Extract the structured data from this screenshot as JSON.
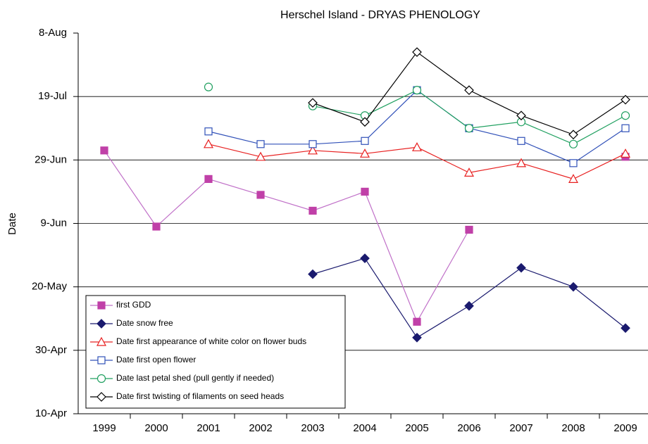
{
  "chart_data": {
    "type": "line",
    "title": "Herschel Island - DRYAS PHENOLOGY",
    "y_label": "Date",
    "categories": [
      "1999",
      "2000",
      "2001",
      "2002",
      "2003",
      "2004",
      "2005",
      "2006",
      "2007",
      "2008",
      "2009"
    ],
    "ylim": [
      100,
      220
    ],
    "yticks": [
      {
        "value": 100,
        "label": "10-Apr"
      },
      {
        "value": 120,
        "label": "30-Apr"
      },
      {
        "value": 140,
        "label": "20-May"
      },
      {
        "value": 160,
        "label": "9-Jun"
      },
      {
        "value": 180,
        "label": "29-Jun"
      },
      {
        "value": 200,
        "label": "19-Jul"
      },
      {
        "value": 220,
        "label": "8-Aug"
      }
    ],
    "grid": true,
    "legend": "lower left",
    "series": [
      {
        "name": "first GDD",
        "color": "#c040a8",
        "line_color": "#c070c8",
        "marker": "square",
        "filled": true,
        "values": [
          183,
          159,
          174,
          169,
          164,
          170,
          129,
          158,
          null,
          null,
          181
        ]
      },
      {
        "name": "Date snow free",
        "color": "#1a1a6e",
        "line_color": "#1a1a6e",
        "marker": "diamond",
        "filled": true,
        "values": [
          null,
          null,
          null,
          null,
          144,
          149,
          124,
          134,
          146,
          140,
          127
        ]
      },
      {
        "name": "Date first appearance of white color on flower buds",
        "color": "#e82020",
        "line_color": "#e82020",
        "marker": "triangle",
        "filled": false,
        "values": [
          null,
          null,
          185,
          181,
          183,
          182,
          184,
          176,
          179,
          174,
          182
        ]
      },
      {
        "name": "Date first open flower",
        "color": "#3050b8",
        "line_color": "#3050b8",
        "marker": "square",
        "filled": false,
        "values": [
          null,
          null,
          189,
          185,
          185,
          186,
          202,
          190,
          186,
          179,
          190
        ]
      },
      {
        "name": "Date last petal shed (pull gently if needed)",
        "color": "#20a060",
        "line_color": "#20a060",
        "marker": "circle",
        "filled": false,
        "values": [
          null,
          null,
          203,
          null,
          197,
          194,
          202,
          190,
          192,
          185,
          194
        ]
      },
      {
        "name": "Date first twisting of filaments on seed heads",
        "color": "#000000",
        "line_color": "#000000",
        "marker": "diamond",
        "filled": false,
        "values": [
          null,
          null,
          null,
          null,
          198,
          192,
          214,
          202,
          194,
          188,
          199
        ]
      }
    ]
  }
}
